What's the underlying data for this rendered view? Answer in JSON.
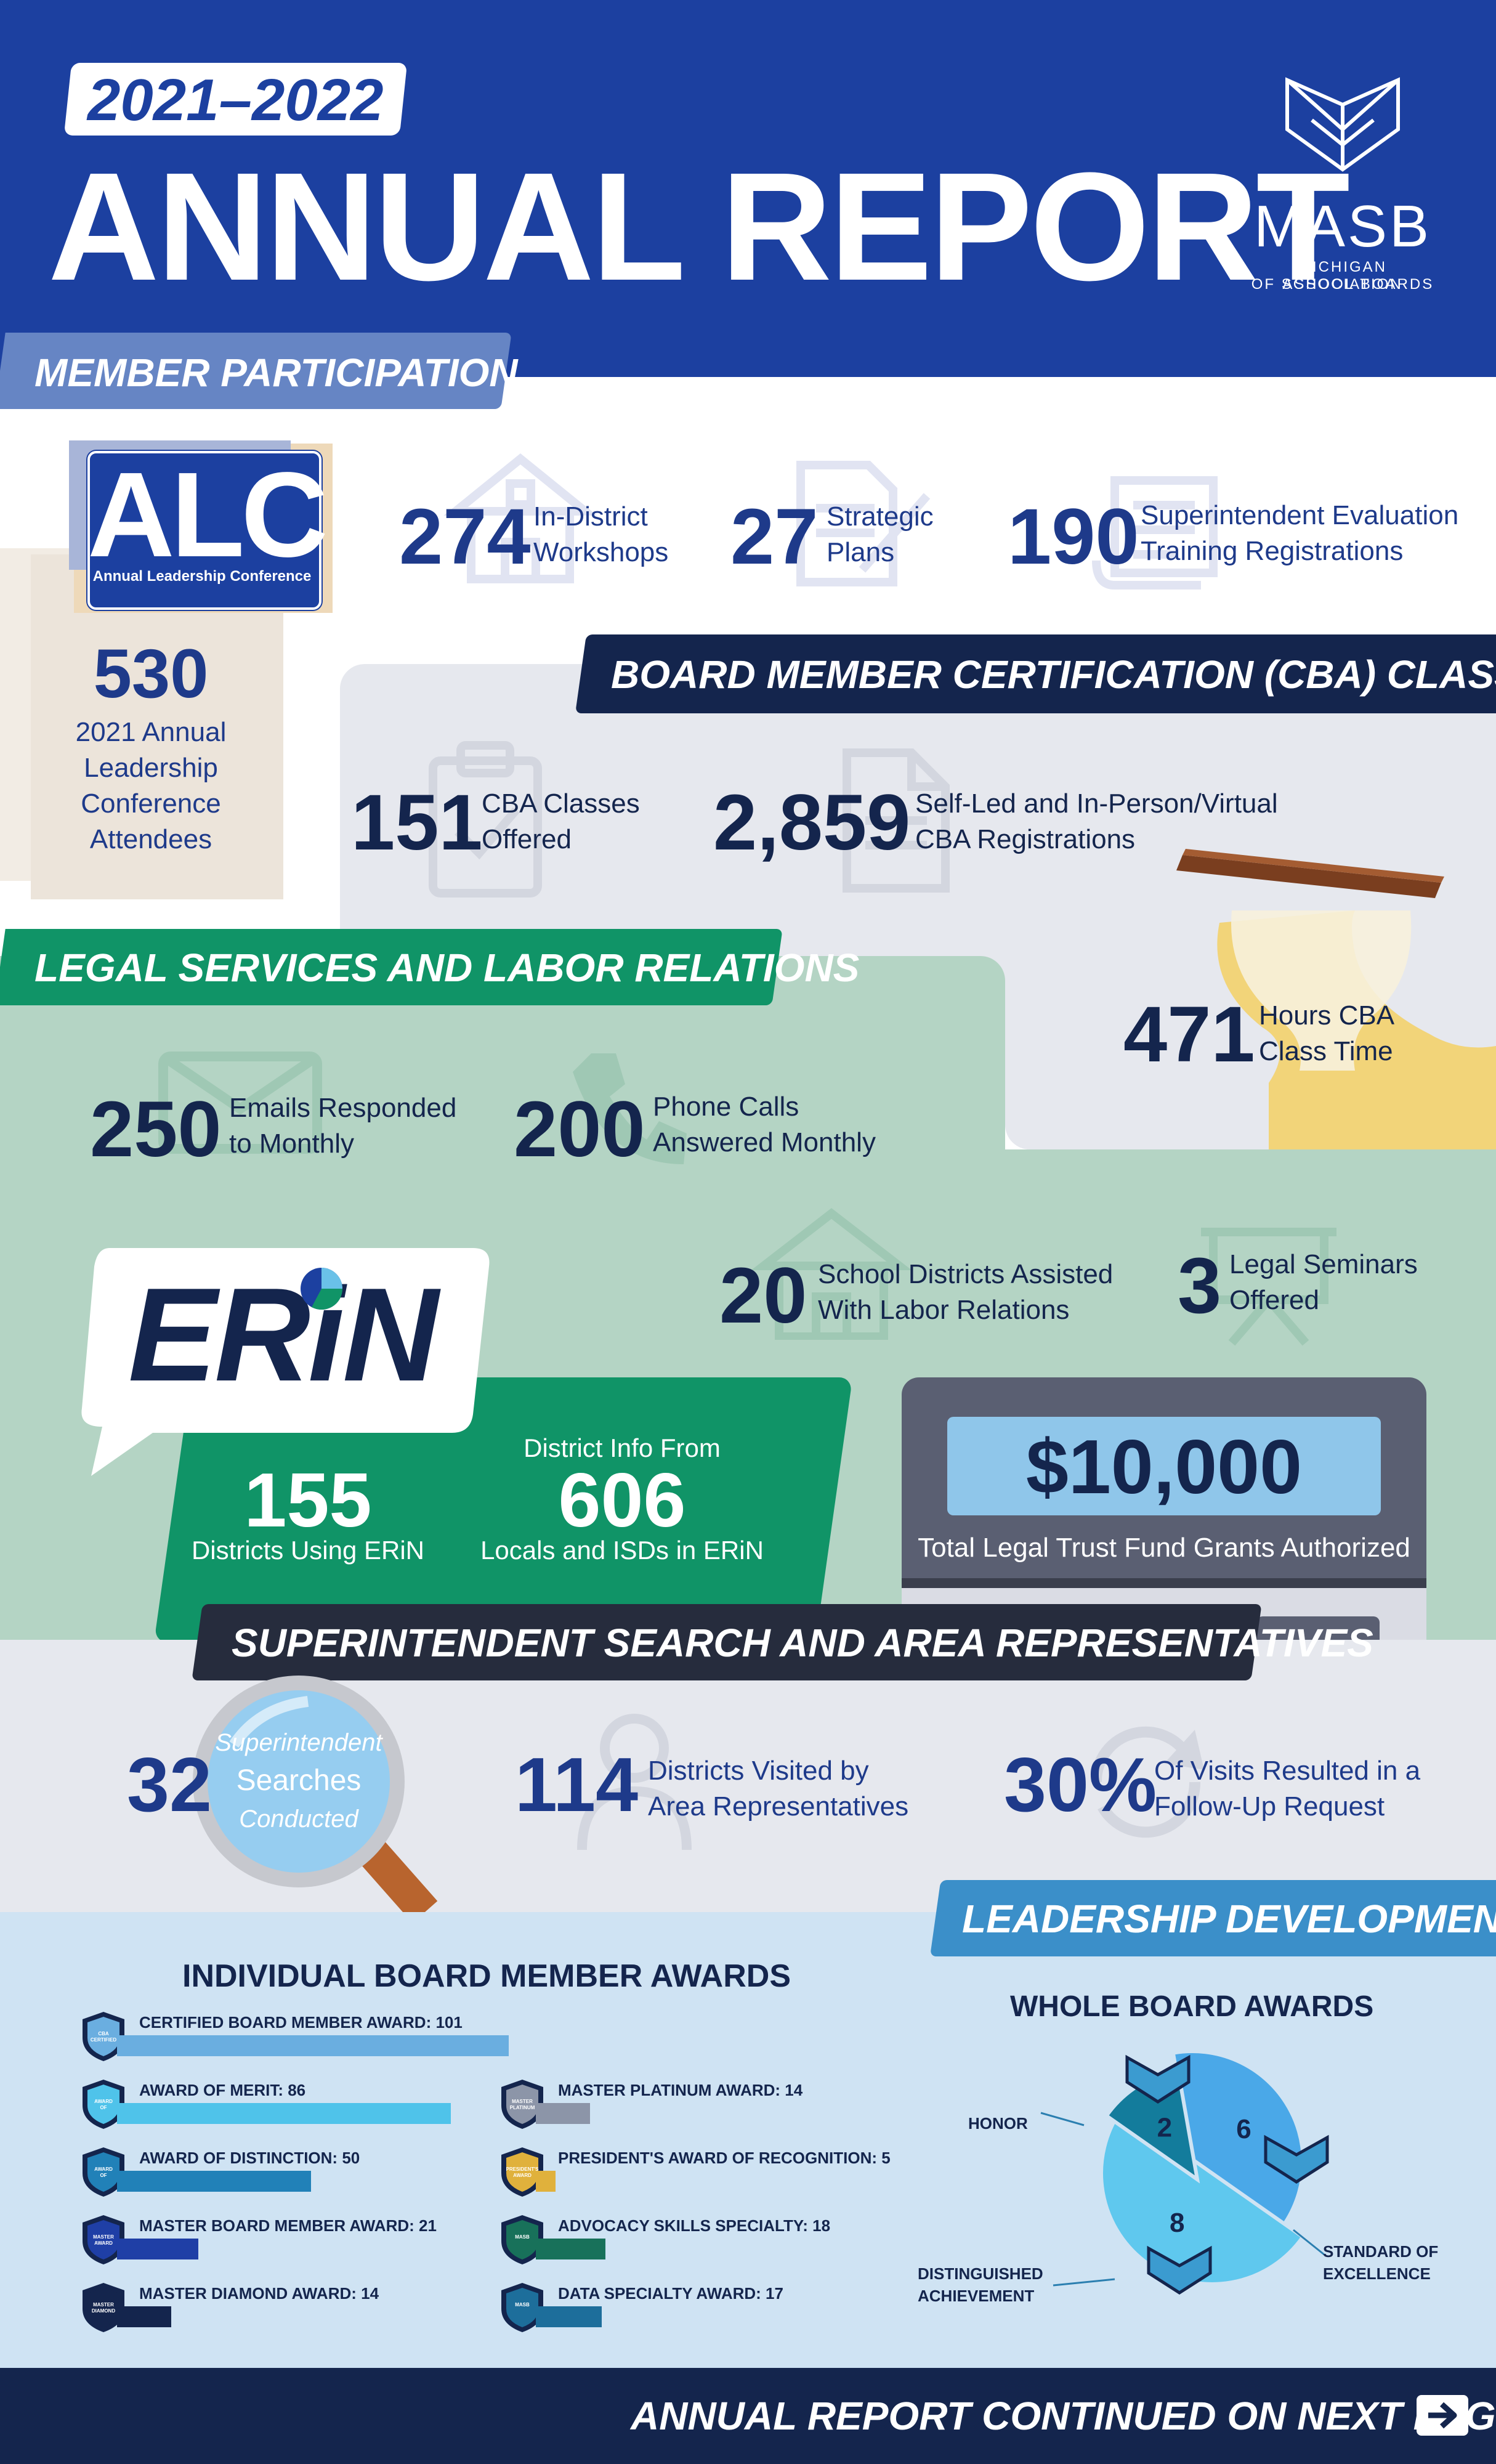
{
  "header": {
    "year": "2021–2022",
    "title": "ANNUAL REPORT",
    "logo_name": "MASB",
    "logo_sub1": "MICHIGAN ASSOCIATION",
    "logo_sub2": "OF SCHOOL BOARDS"
  },
  "member_participation": {
    "banner": "MEMBER PARTICIPATION",
    "alc_logo": "ALC",
    "alc_logo_sub": "Annual Leadership Conference",
    "alc_number": "530",
    "alc_label": [
      "2021 Annual",
      "Leadership",
      "Conference",
      "Attendees"
    ],
    "stats": [
      {
        "number": "274",
        "label": [
          "In-District",
          "Workshops"
        ],
        "icon": "school-icon"
      },
      {
        "number": "27",
        "label": [
          "Strategic",
          "Plans"
        ],
        "icon": "document-pen-icon"
      },
      {
        "number": "190",
        "label": [
          "Superintendent Evaluation",
          "Training Registrations"
        ],
        "icon": "scroll-icon"
      }
    ]
  },
  "cba": {
    "banner": "BOARD MEMBER CERTIFICATION (CBA) CLASSES",
    "stats": [
      {
        "number": "151",
        "label": [
          "CBA Classes",
          "Offered"
        ]
      },
      {
        "number": "2,859",
        "label": [
          "Self-Led and In-Person/Virtual",
          "CBA Registrations"
        ]
      },
      {
        "number": "471",
        "label": [
          "Hours CBA",
          "Class Time"
        ]
      }
    ]
  },
  "legal": {
    "banner": "LEGAL SERVICES AND LABOR RELATIONS",
    "stats": [
      {
        "number": "250",
        "label": [
          "Emails Responded",
          "to Monthly"
        ]
      },
      {
        "number": "200",
        "label": [
          "Phone Calls",
          "Answered Monthly"
        ]
      },
      {
        "number": "20",
        "label": [
          "School Districts Assisted",
          "With Labor Relations"
        ]
      },
      {
        "number": "3",
        "label": [
          "Legal Seminars",
          "Offered"
        ]
      }
    ],
    "erin_logo": "ERiN",
    "erin_stats": [
      {
        "number": "155",
        "label": "Districts Using ERiN"
      },
      {
        "pre": "District Info From",
        "number": "606",
        "label": "Locals and ISDs in ERiN"
      }
    ],
    "trust_amount": "$10,000",
    "trust_label": "Total Legal Trust Fund Grants Authorized"
  },
  "superintendent": {
    "banner": "SUPERINTENDENT SEARCH AND AREA REPRESENTATIVES",
    "searches_number": "32",
    "searches_label": [
      "Superintendent",
      "Searches",
      "Conducted"
    ],
    "stats": [
      {
        "number": "114",
        "label": [
          "Districts Visited by",
          "Area Representatives"
        ]
      },
      {
        "number": "30%",
        "label": [
          "Of Visits Resulted in a",
          "Follow-Up Request"
        ]
      }
    ]
  },
  "leadership": {
    "banner": "LEADERSHIP DEVELOPMENT",
    "individual_title": "INDIVIDUAL BOARD MEMBER AWARDS",
    "individual_awards": [
      {
        "label": "CERTIFIED BOARD MEMBER AWARD: 101",
        "value": 101,
        "color": "#6aaee0",
        "badge": "CBA CERTIFIED"
      },
      {
        "label": "AWARD OF MERIT: 86",
        "value": 86,
        "color": "#4fc3ea",
        "badge": "AWARD OF MERIT"
      },
      {
        "label": "AWARD OF DISTINCTION: 50",
        "value": 50,
        "color": "#2181b8",
        "badge": "AWARD OF DISTINCTION"
      },
      {
        "label": "MASTER BOARD MEMBER AWARD: 21",
        "value": 21,
        "color": "#1f3fa6",
        "badge": "MASTER AWARD"
      },
      {
        "label": "MASTER DIAMOND AWARD: 14",
        "value": 14,
        "color": "#14254d",
        "badge": "MASTER DIAMOND"
      },
      {
        "label": "MASTER PLATINUM AWARD: 14",
        "value": 14,
        "color": "#8c95a8",
        "badge": "MASTER PLATINUM"
      },
      {
        "label": "PRESIDENT'S AWARD OF RECOGNITION: 5",
        "value": 5,
        "color": "#e0b13c",
        "badge": "PRESIDENT'S AWARD"
      },
      {
        "label": "ADVOCACY SKILLS SPECIALTY: 18",
        "value": 18,
        "color": "#18715a",
        "badge": "MASB"
      },
      {
        "label": "DATA SPECIALTY AWARD: 17",
        "value": 17,
        "color": "#1d6e9b",
        "badge": "MASB"
      }
    ],
    "whole_title": "WHOLE BOARD AWARDS",
    "whole_awards": [
      {
        "label": "HONOR",
        "value": 6,
        "color": "#4aa8e8"
      },
      {
        "label": "STANDARD OF EXCELLENCE",
        "value": 8,
        "color": "#5fc8ee"
      },
      {
        "label": "DISTINGUISHED ACHIEVEMENT",
        "value": 2,
        "color": "#137c9c"
      }
    ],
    "whole_label_lines": {
      "honor": [
        "HONOR"
      ],
      "standard": [
        "STANDARD OF",
        "EXCELLENCE"
      ],
      "distinguished": [
        "DISTINGUISHED",
        "ACHIEVEMENT"
      ]
    }
  },
  "footer": {
    "text": "ANNUAL REPORT CONTINUED ON NEXT PAGE",
    "icon": "arrow-right-icon"
  },
  "colors": {
    "header_blue": "#1c40a0",
    "navy": "#14254d",
    "green": "#109467",
    "sage": "#b4d4c4",
    "light_gray": "#e6e8ee",
    "light_blue": "#cfe3f3"
  }
}
